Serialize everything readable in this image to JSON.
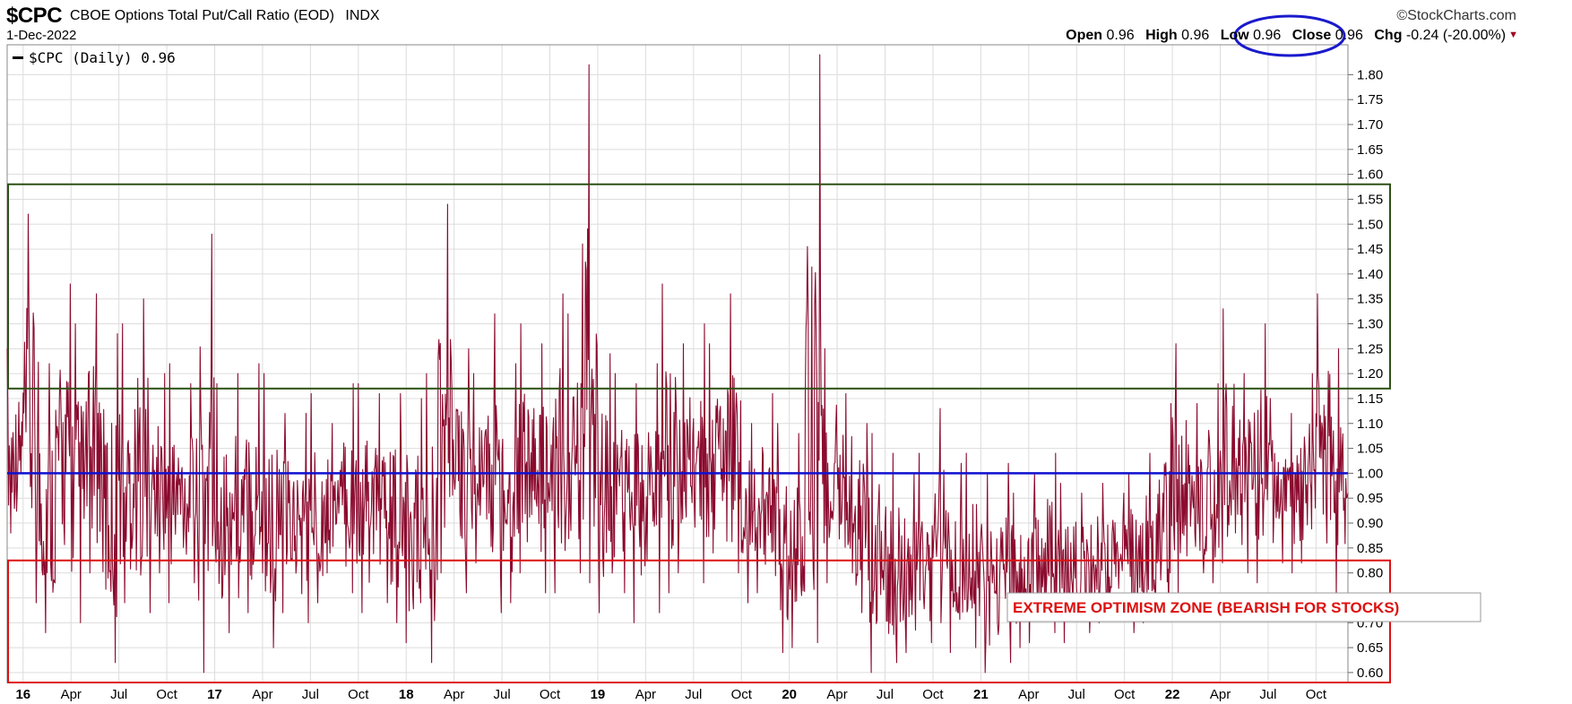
{
  "header": {
    "symbol": "$CPC",
    "title": "CBOE Options Total Put/Call Ratio (EOD)",
    "exchange": "INDX",
    "date": "1-Dec-2022",
    "brand": "StockCharts.com",
    "brand_mark": "©",
    "quote": {
      "open_label": "Open",
      "open": "0.96",
      "high_label": "High",
      "high": "0.96",
      "low_label": "Low",
      "low": "0.96",
      "close_label": "Close",
      "close": "0.96",
      "chg_label": "Chg",
      "chg": "-0.24 (-20.00%)",
      "chg_direction_icon": "down-triangle-icon"
    }
  },
  "legend": {
    "label": "$CPC (Daily) 0.96"
  },
  "annotation": {
    "text": "EXTREME OPTIMISM ZONE (BEARISH FOR STOCKS)"
  },
  "colors": {
    "series": "#8b0a2e",
    "reference_line": "#1010d0",
    "optimism_zone": "#dd1111",
    "pessimism_zone": "#2d5016",
    "close_highlight": "#1a1acc",
    "grid": "#dcdcdc"
  },
  "chart_data": {
    "type": "line",
    "series": [
      {
        "name": "$CPC (Daily)",
        "x": [
          "2015-12",
          "2016-01",
          "2016-02",
          "2016-03",
          "2016-04",
          "2016-05",
          "2016-06",
          "2016-07",
          "2016-08",
          "2016-09",
          "2016-10",
          "2016-11",
          "2016-12",
          "2017-01",
          "2017-02",
          "2017-03",
          "2017-04",
          "2017-05",
          "2017-06",
          "2017-07",
          "2017-08",
          "2017-09",
          "2017-10",
          "2017-11",
          "2017-12",
          "2018-01",
          "2018-02",
          "2018-03",
          "2018-04",
          "2018-05",
          "2018-06",
          "2018-07",
          "2018-08",
          "2018-09",
          "2018-10",
          "2018-11",
          "2018-12",
          "2019-01",
          "2019-02",
          "2019-03",
          "2019-04",
          "2019-05",
          "2019-06",
          "2019-07",
          "2019-08",
          "2019-09",
          "2019-10",
          "2019-11",
          "2019-12",
          "2020-01",
          "2020-02",
          "2020-03",
          "2020-04",
          "2020-05",
          "2020-06",
          "2020-07",
          "2020-08",
          "2020-09",
          "2020-10",
          "2020-11",
          "2020-12",
          "2021-01",
          "2021-02",
          "2021-03",
          "2021-04",
          "2021-05",
          "2021-06",
          "2021-07",
          "2021-08",
          "2021-09",
          "2021-10",
          "2021-11",
          "2021-12",
          "2022-01",
          "2022-02",
          "2022-03",
          "2022-04",
          "2022-05",
          "2022-06",
          "2022-07",
          "2022-08",
          "2022-09",
          "2022-10",
          "2022-11",
          "2022-12"
        ],
        "low": [
          0.88,
          0.74,
          0.68,
          0.78,
          0.7,
          0.8,
          0.62,
          0.74,
          0.72,
          0.8,
          0.74,
          0.78,
          0.6,
          0.68,
          0.75,
          0.72,
          0.65,
          0.72,
          0.7,
          0.74,
          0.8,
          0.76,
          0.72,
          0.74,
          0.7,
          0.66,
          0.62,
          0.8,
          0.76,
          0.82,
          0.72,
          0.74,
          0.8,
          0.76,
          0.76,
          0.8,
          0.78,
          0.72,
          0.76,
          0.7,
          0.72,
          0.76,
          0.8,
          0.78,
          0.84,
          0.8,
          0.74,
          0.76,
          0.64,
          0.65,
          0.66,
          0.78,
          0.8,
          0.72,
          0.6,
          0.62,
          0.64,
          0.66,
          0.7,
          0.64,
          0.65,
          0.6,
          0.62,
          0.65,
          0.66,
          0.68,
          0.66,
          0.68,
          0.7,
          0.72,
          0.68,
          0.7,
          0.72,
          0.76,
          0.8,
          0.78,
          0.82,
          0.8,
          0.78,
          0.82,
          0.8,
          0.82,
          0.86,
          0.75,
          0.86
        ],
        "high": [
          1.25,
          1.52,
          1.22,
          1.38,
          1.3,
          1.36,
          1.28,
          1.3,
          1.35,
          1.2,
          1.22,
          1.18,
          1.48,
          1.18,
          1.2,
          1.22,
          1.2,
          1.12,
          1.12,
          1.16,
          1.1,
          1.18,
          1.18,
          1.16,
          1.16,
          1.15,
          1.2,
          1.54,
          1.25,
          1.2,
          1.32,
          1.22,
          1.3,
          1.26,
          1.36,
          1.32,
          1.82,
          1.24,
          1.2,
          1.18,
          1.22,
          1.38,
          1.26,
          1.3,
          1.26,
          1.36,
          1.1,
          1.16,
          1.1,
          1.08,
          1.84,
          1.25,
          1.16,
          1.1,
          1.08,
          1.04,
          1.0,
          1.04,
          1.13,
          1.02,
          1.04,
          1.0,
          1.02,
          0.96,
          1.0,
          1.04,
          0.98,
          0.96,
          0.98,
          0.96,
          1.0,
          1.04,
          1.14,
          1.26,
          1.14,
          1.18,
          1.33,
          1.2,
          1.3,
          1.15,
          1.12,
          1.2,
          1.36,
          1.25,
          1.2
        ],
        "close": [
          1.05,
          1.1,
          0.98,
          1.02,
          1.0,
          1.04,
          0.96,
          0.98,
          1.02,
          0.98,
          0.96,
          0.95,
          1.0,
          0.94,
          0.95,
          0.96,
          0.94,
          0.92,
          0.9,
          0.92,
          0.95,
          0.96,
          0.94,
          0.93,
          0.92,
          0.9,
          0.94,
          1.02,
          1.0,
          0.98,
          1.0,
          0.97,
          1.02,
          1.0,
          1.04,
          1.02,
          1.12,
          1.0,
          0.98,
          0.96,
          0.98,
          1.0,
          1.02,
          1.0,
          1.02,
          1.04,
          0.96,
          0.98,
          0.9,
          0.88,
          1.08,
          1.0,
          0.98,
          0.94,
          0.86,
          0.82,
          0.8,
          0.82,
          0.86,
          0.82,
          0.82,
          0.8,
          0.8,
          0.78,
          0.82,
          0.84,
          0.82,
          0.82,
          0.84,
          0.84,
          0.84,
          0.86,
          0.92,
          0.98,
          0.96,
          0.98,
          1.02,
          1.0,
          1.02,
          0.98,
          0.96,
          0.98,
          1.02,
          0.95,
          0.96
        ]
      }
    ],
    "x_tick_labels": [
      "16",
      "Apr",
      "Jul",
      "Oct",
      "17",
      "Apr",
      "Jul",
      "Oct",
      "18",
      "Apr",
      "Jul",
      "Oct",
      "19",
      "Apr",
      "Jul",
      "Oct",
      "20",
      "Apr",
      "Jul",
      "Oct",
      "21",
      "Apr",
      "Jul",
      "Oct",
      "22",
      "Apr",
      "Jul",
      "Oct"
    ],
    "x_tick_dates": [
      "2016-01",
      "2016-04",
      "2016-07",
      "2016-10",
      "2017-01",
      "2017-04",
      "2017-07",
      "2017-10",
      "2018-01",
      "2018-04",
      "2018-07",
      "2018-10",
      "2019-01",
      "2019-04",
      "2019-07",
      "2019-10",
      "2020-01",
      "2020-04",
      "2020-07",
      "2020-10",
      "2021-01",
      "2021-04",
      "2021-07",
      "2021-10",
      "2022-01",
      "2022-04",
      "2022-07",
      "2022-10"
    ],
    "xlim": [
      "2015-12",
      "2022-12"
    ],
    "y_tick_labels": [
      "0.60",
      "0.65",
      "0.70",
      "0.75",
      "0.80",
      "0.85",
      "0.90",
      "0.95",
      "1.00",
      "1.05",
      "1.10",
      "1.15",
      "1.20",
      "1.25",
      "1.30",
      "1.35",
      "1.40",
      "1.45",
      "1.50",
      "1.55",
      "1.60",
      "1.65",
      "1.70",
      "1.75",
      "1.80"
    ],
    "ylim": [
      0.58,
      1.86
    ],
    "y_axis_side": "right",
    "grid": true,
    "reference_line": 1.0,
    "zones": [
      {
        "y_from": 1.17,
        "y_to": 1.58,
        "color": "#2d5016"
      },
      {
        "y_from": 0.58,
        "y_to": 0.825,
        "color": "#dd1111"
      }
    ]
  }
}
